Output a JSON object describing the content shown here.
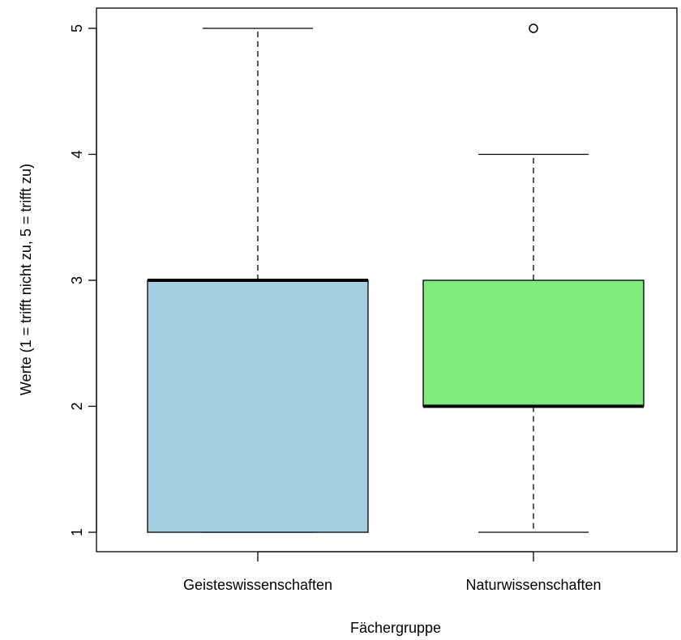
{
  "chart_data": {
    "type": "boxplot",
    "title": "",
    "xlabel": "Fächergruppe",
    "ylabel": "Werte (1 = trifft nicht zu, 5 = trifft zu)",
    "ylim": [
      0.85,
      5.15
    ],
    "yticks": [
      "1",
      "2",
      "3",
      "4",
      "5"
    ],
    "grid": false,
    "categories": [
      "Geisteswissenschaften",
      "Naturwissenschaften"
    ],
    "boxes": [
      {
        "category": "Geisteswissenschaften",
        "whisker_low": 1,
        "q1": 1,
        "median": 3,
        "q3": 3,
        "whisker_high": 5,
        "outliers": [],
        "fill": "#a3cfe0"
      },
      {
        "category": "Naturwissenschaften",
        "whisker_low": 1,
        "q1": 2,
        "median": 2,
        "q3": 3,
        "whisker_high": 4,
        "outliers": [
          5
        ],
        "fill": "#80ec7d"
      }
    ]
  }
}
